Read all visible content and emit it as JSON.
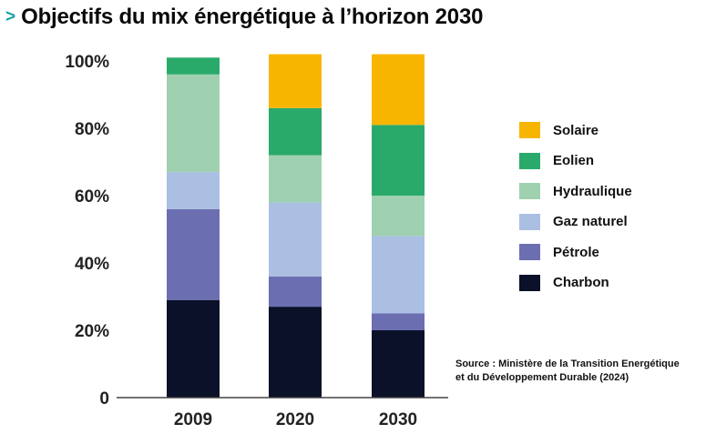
{
  "header": {
    "chevron": ">",
    "title": "Objectifs du mix énergétique à l’horizon 2030"
  },
  "source_line1": "Source : Ministère de la Transition Energétique",
  "source_line2": "et du Développement Durable (2024)",
  "chart_data": {
    "type": "bar",
    "stacked": true,
    "title": "Objectifs du mix énergétique à l’horizon 2030",
    "xlabel": "",
    "ylabel": "",
    "categories": [
      "2009",
      "2020",
      "2030"
    ],
    "ylim": [
      0,
      100
    ],
    "yticks": [
      0,
      20,
      40,
      60,
      80,
      100
    ],
    "ytick_labels": [
      "0",
      "20%",
      "40%",
      "60%",
      "80%",
      "100%"
    ],
    "grid": false,
    "legend_position": "right",
    "series": [
      {
        "name": "Charbon",
        "color": "#0a1128",
        "values": [
          29,
          27,
          20
        ]
      },
      {
        "name": "Pétrole",
        "color": "#6b6eb0",
        "values": [
          27,
          9,
          5
        ]
      },
      {
        "name": "Gaz naturel",
        "color": "#abbfe3",
        "values": [
          11,
          22,
          23
        ]
      },
      {
        "name": "Hydraulique",
        "color": "#9fd1b0",
        "values": [
          29,
          14,
          12
        ]
      },
      {
        "name": "Eolien",
        "color": "#2aaa6a",
        "values": [
          5,
          14,
          21
        ]
      },
      {
        "name": "Solaire",
        "color": "#f8b500",
        "values": [
          0,
          16,
          21
        ]
      }
    ]
  }
}
